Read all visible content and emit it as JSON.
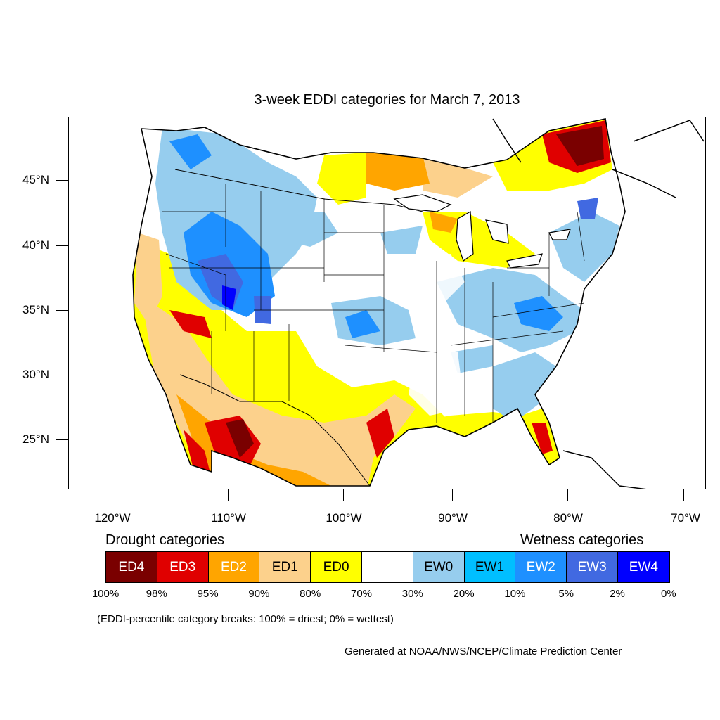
{
  "title": "3-week EDDI categories for March 7, 2013",
  "lat_labels": [
    "45°N",
    "40°N",
    "35°N",
    "30°N",
    "25°N"
  ],
  "lon_labels": [
    "120°W",
    "110°W",
    "100°W",
    "90°W",
    "80°W",
    "70°W"
  ],
  "legend": {
    "drought_heading": "Drought categories",
    "wetness_heading": "Wetness categories",
    "categories": [
      {
        "label": "ED4",
        "color": "#7a0000",
        "text_color": "#ffffff"
      },
      {
        "label": "ED3",
        "color": "#e00000",
        "text_color": "#ffffff"
      },
      {
        "label": "ED2",
        "color": "#ffa500",
        "text_color": "#ffffff"
      },
      {
        "label": "ED1",
        "color": "#fcd18c",
        "text_color": "#000000"
      },
      {
        "label": "ED0",
        "color": "#ffff00",
        "text_color": "#000000"
      },
      {
        "label": "",
        "color": "#ffffff",
        "text_color": "#000000"
      },
      {
        "label": "EW0",
        "color": "#96cdee",
        "text_color": "#000000"
      },
      {
        "label": "EW1",
        "color": "#00bfff",
        "text_color": "#000000"
      },
      {
        "label": "EW2",
        "color": "#1e90ff",
        "text_color": "#ffffff"
      },
      {
        "label": "EW3",
        "color": "#4169e1",
        "text_color": "#ffffff"
      },
      {
        "label": "EW4",
        "color": "#0000ff",
        "text_color": "#ffffff"
      }
    ],
    "breaks": [
      "100%",
      "98%",
      "95%",
      "90%",
      "80%",
      "70%",
      "30%",
      "20%",
      "10%",
      "5%",
      "2%",
      "0%"
    ]
  },
  "note": "(EDDI-percentile category breaks: 100% = driest; 0% = wettest)",
  "credit": "Generated at NOAA/NWS/NCEP/Climate Prediction Center"
}
